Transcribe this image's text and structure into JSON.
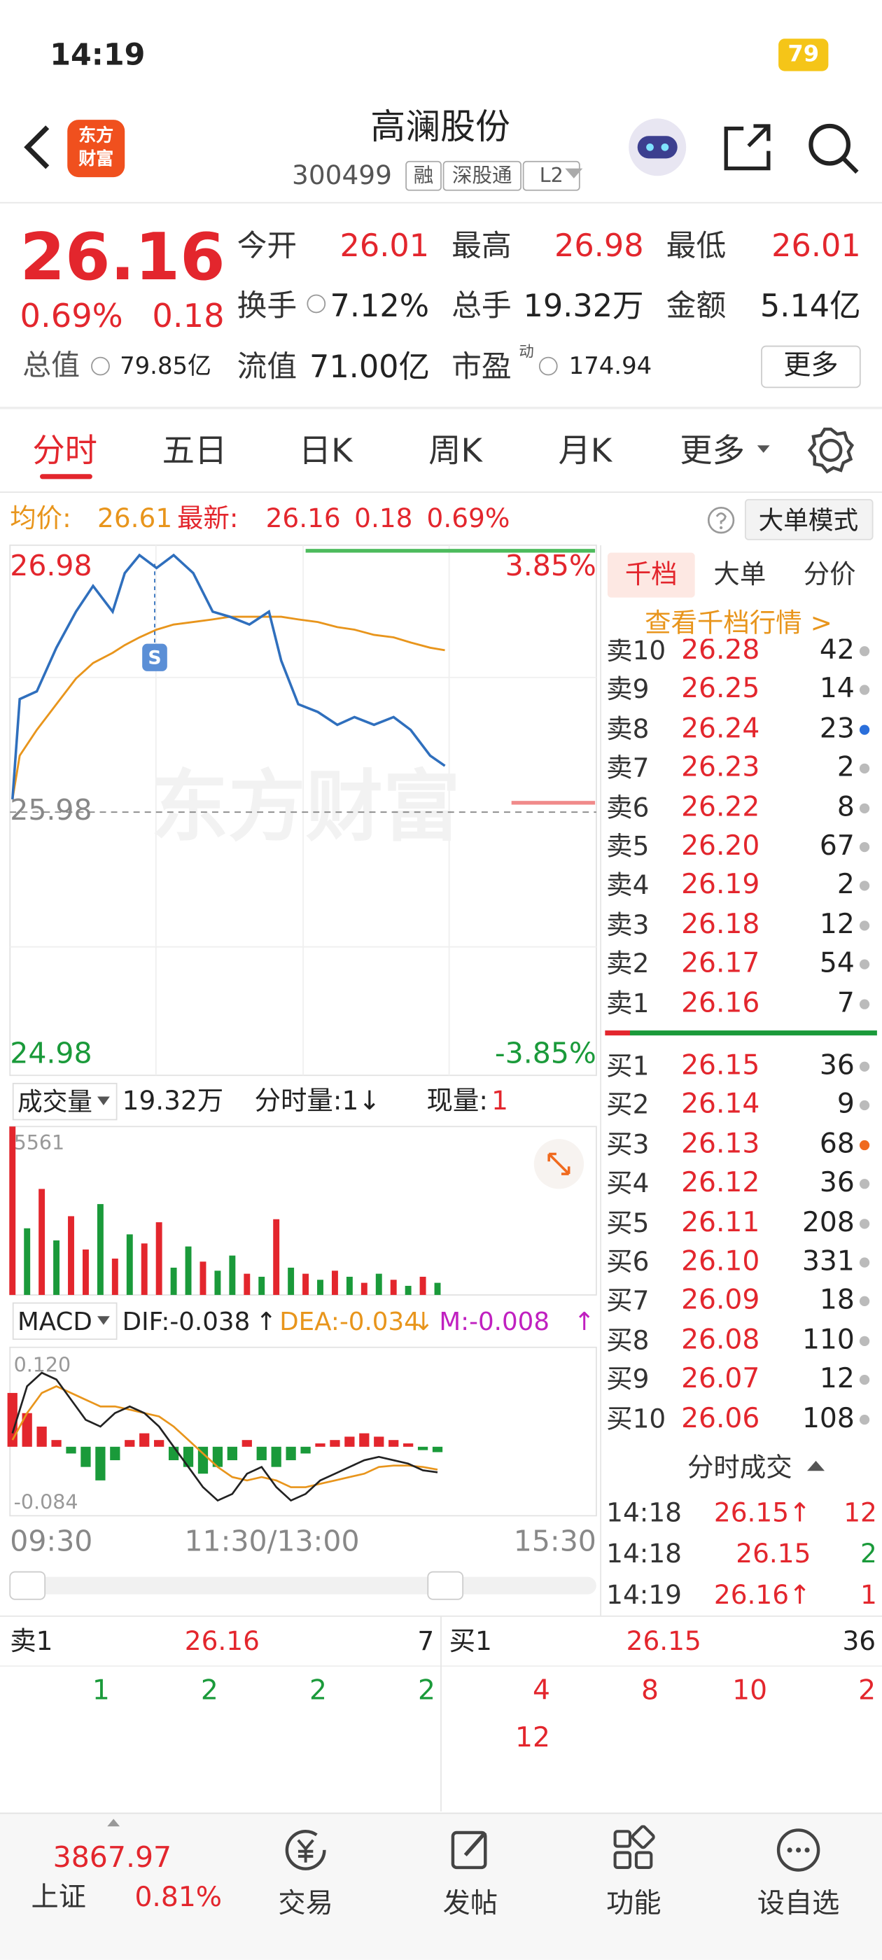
{
  "status_bar": {
    "time": "14:19",
    "battery": "79"
  },
  "header": {
    "logo": [
      "东方",
      "财富"
    ],
    "name": "高澜股份",
    "code": "300499",
    "tags": [
      "融",
      "深股通",
      "L2"
    ]
  },
  "quote": {
    "price": "26.16",
    "change_pct": "0.69%",
    "change": "0.18",
    "stats": [
      {
        "label": "今开",
        "value": "26.01"
      },
      {
        "label": "最高",
        "value": "26.98"
      },
      {
        "label": "最低",
        "value": "26.01"
      },
      {
        "label": "换手",
        "value": "7.12%"
      },
      {
        "label": "总手",
        "value": "19.32万"
      },
      {
        "label": "金额",
        "value": "5.14亿"
      }
    ],
    "market_cap": {
      "label": "总值",
      "value": "79.85亿"
    },
    "float_cap": {
      "label": "流值",
      "value": "71.00亿"
    },
    "pe": {
      "label": "市盈",
      "superscript": "动",
      "value": "174.94"
    },
    "more": "更多"
  },
  "tabs": [
    "分时",
    "五日",
    "日K",
    "周K",
    "月K",
    "更多"
  ],
  "info_line": {
    "avg_label": "均价:",
    "avg": "26.61",
    "latest_label": "最新:",
    "latest": "26.16",
    "change": "0.18",
    "change_pct": "0.69%",
    "mode": "大单模式"
  },
  "intraday": {
    "high_label": "26.98",
    "prev_close_label": "25.98",
    "low_label": "24.98",
    "up_pct": "3.85%",
    "down_pct": "-3.85%",
    "watermark": "东方财富",
    "marker": "S",
    "xlim": [
      0,
      240
    ],
    "minutes": [
      1,
      4,
      11,
      19,
      27,
      34,
      42,
      47,
      53,
      60,
      67,
      75,
      83,
      90,
      98,
      106,
      111,
      118,
      126,
      134,
      141,
      149,
      157,
      164,
      172,
      178
    ],
    "price": [
      26.03,
      26.42,
      26.45,
      26.62,
      26.76,
      26.86,
      26.76,
      26.91,
      26.98,
      26.93,
      26.98,
      26.91,
      26.76,
      26.74,
      26.71,
      26.76,
      26.57,
      26.4,
      26.37,
      26.32,
      26.35,
      26.32,
      26.35,
      26.3,
      26.2,
      26.16
    ],
    "avg": [
      26.03,
      26.2,
      26.3,
      26.4,
      26.5,
      26.56,
      26.6,
      26.63,
      26.66,
      26.69,
      26.71,
      26.72,
      26.73,
      26.74,
      26.74,
      26.74,
      26.74,
      26.73,
      26.72,
      26.7,
      26.69,
      26.67,
      26.66,
      26.64,
      26.62,
      26.61
    ]
  },
  "volume": {
    "label": "成交量",
    "total": "19.32万",
    "per_min_label": "分时量:1↓",
    "current_label": "现量:",
    "current": "1",
    "max_label": "5561",
    "minutes": [
      1,
      7,
      13,
      19,
      25,
      31,
      37,
      43,
      49,
      55,
      61,
      67,
      73,
      79,
      85,
      91,
      97,
      103,
      109,
      115,
      121,
      127,
      133,
      139,
      145,
      151,
      157,
      163,
      169,
      175
    ],
    "values": [
      5561,
      2200,
      3500,
      1800,
      2600,
      1500,
      3000,
      1200,
      2000,
      1700,
      2400,
      900,
      1600,
      1100,
      800,
      1300,
      700,
      600,
      2500,
      900,
      700,
      500,
      800,
      600,
      400,
      700,
      500,
      300,
      600,
      400
    ],
    "directions": [
      "up",
      "down",
      "up",
      "down",
      "up",
      "up",
      "down",
      "up",
      "down",
      "up",
      "up",
      "down",
      "down",
      "up",
      "down",
      "down",
      "up",
      "down",
      "up",
      "down",
      "up",
      "down",
      "up",
      "down",
      "up",
      "down",
      "up",
      "down",
      "up",
      "down"
    ]
  },
  "macd": {
    "label": "MACD",
    "dif": "DIF:-0.038",
    "dif_arrow": "↑",
    "dea": "DEA:-0.034",
    "dea_arrow": "↓",
    "m": "M:-0.008",
    "m_arrow": "↑",
    "top_label": "0.120",
    "bottom_label": "-0.084",
    "minutes": [
      1,
      7,
      13,
      19,
      25,
      31,
      37,
      43,
      49,
      55,
      61,
      67,
      73,
      79,
      85,
      91,
      97,
      103,
      109,
      115,
      121,
      127,
      133,
      139,
      145,
      151,
      157,
      163,
      169,
      175
    ],
    "hist": [
      0.08,
      0.05,
      0.03,
      0.01,
      -0.01,
      -0.03,
      -0.05,
      -0.02,
      0.01,
      0.02,
      0.01,
      -0.02,
      -0.03,
      -0.04,
      -0.03,
      -0.02,
      0.01,
      -0.02,
      -0.03,
      -0.02,
      -0.01,
      0.005,
      0.01,
      0.015,
      0.02,
      0.015,
      0.01,
      0.005,
      -0.005,
      -0.008
    ],
    "dif_line": [
      0.02,
      0.09,
      0.11,
      0.1,
      0.07,
      0.04,
      0.03,
      0.05,
      0.06,
      0.05,
      0.03,
      0,
      -0.03,
      -0.06,
      -0.08,
      -0.07,
      -0.04,
      -0.03,
      -0.06,
      -0.08,
      -0.07,
      -0.05,
      -0.04,
      -0.03,
      -0.02,
      -0.015,
      -0.02,
      -0.025,
      -0.035,
      -0.038
    ],
    "dea_line": [
      0.01,
      0.05,
      0.08,
      0.09,
      0.08,
      0.07,
      0.06,
      0.06,
      0.055,
      0.05,
      0.045,
      0.03,
      0.01,
      -0.01,
      -0.03,
      -0.045,
      -0.05,
      -0.045,
      -0.05,
      -0.06,
      -0.06,
      -0.055,
      -0.05,
      -0.045,
      -0.04,
      -0.03,
      -0.028,
      -0.028,
      -0.03,
      -0.034
    ]
  },
  "time_axis": [
    "09:30",
    "11:30/13:00",
    "15:30"
  ],
  "order_book": {
    "tabs": [
      "千档",
      "大单",
      "分价"
    ],
    "link": "查看千档行情 >",
    "asks": [
      {
        "label": "卖10",
        "price": "26.28",
        "volume": "42"
      },
      {
        "label": "卖9",
        "price": "26.25",
        "volume": "14"
      },
      {
        "label": "卖8",
        "price": "26.24",
        "volume": "23",
        "highlight": "#2a6fdb"
      },
      {
        "label": "卖7",
        "price": "26.23",
        "volume": "2"
      },
      {
        "label": "卖6",
        "price": "26.22",
        "volume": "8"
      },
      {
        "label": "卖5",
        "price": "26.20",
        "volume": "67"
      },
      {
        "label": "卖4",
        "price": "26.19",
        "volume": "2"
      },
      {
        "label": "卖3",
        "price": "26.18",
        "volume": "12"
      },
      {
        "label": "卖2",
        "price": "26.17",
        "volume": "54"
      },
      {
        "label": "卖1",
        "price": "26.16",
        "volume": "7"
      }
    ],
    "bids": [
      {
        "label": "买1",
        "price": "26.15",
        "volume": "36"
      },
      {
        "label": "买2",
        "price": "26.14",
        "volume": "9"
      },
      {
        "label": "买3",
        "price": "26.13",
        "volume": "68",
        "highlight": "#f06a1e"
      },
      {
        "label": "买4",
        "price": "26.12",
        "volume": "36"
      },
      {
        "label": "买5",
        "price": "26.11",
        "volume": "208"
      },
      {
        "label": "买6",
        "price": "26.10",
        "volume": "331"
      },
      {
        "label": "买7",
        "price": "26.09",
        "volume": "18"
      },
      {
        "label": "买8",
        "price": "26.08",
        "volume": "110"
      },
      {
        "label": "买9",
        "price": "26.07",
        "volume": "12"
      },
      {
        "label": "买10",
        "price": "26.06",
        "volume": "108"
      }
    ]
  },
  "trades": {
    "title": "分时成交",
    "rows": [
      {
        "time": "14:18",
        "price": "26.15↑",
        "volume": "12",
        "direction": "up"
      },
      {
        "time": "14:18",
        "price": "26.15",
        "volume": "2",
        "direction": "down"
      },
      {
        "time": "14:19",
        "price": "26.16↑",
        "volume": "1",
        "direction": "up"
      }
    ]
  },
  "queue": {
    "sell": {
      "label": "卖1",
      "price": "26.16",
      "volume": "7",
      "orders": [
        "1",
        "2",
        "2",
        "2"
      ]
    },
    "buy": {
      "label": "买1",
      "price": "26.15",
      "volume": "36",
      "orders": [
        "4",
        "8",
        "10",
        "2",
        "12"
      ]
    }
  },
  "bottom_nav": {
    "index_value": "3867.97",
    "index_name": "上证",
    "index_pct": "0.81%",
    "items": [
      "交易",
      "发帖",
      "功能",
      "设自选"
    ]
  }
}
